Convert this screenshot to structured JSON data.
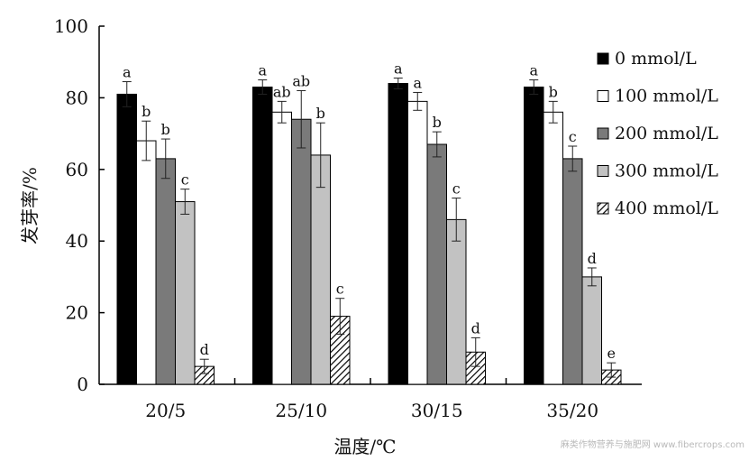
{
  "chart_data": {
    "type": "bar",
    "xlabel": "温度/℃",
    "ylabel": "发芽率/%",
    "ylim": [
      0,
      100
    ],
    "yticks": [
      0,
      20,
      40,
      60,
      80,
      100
    ],
    "categories": [
      "20/5",
      "25/10",
      "30/15",
      "35/20"
    ],
    "legend_position": "right",
    "series": [
      {
        "name": "0 mmol/L",
        "fill": "#000000",
        "pattern": "solid",
        "values": [
          81,
          83,
          84,
          83
        ],
        "errors": [
          3.5,
          2,
          1.5,
          2
        ],
        "letters": [
          "a",
          "a",
          "a",
          "a"
        ]
      },
      {
        "name": "100 mmol/L",
        "fill": "#ffffff",
        "pattern": "solid",
        "values": [
          68,
          76,
          79,
          76
        ],
        "errors": [
          5.5,
          3,
          2.5,
          3
        ],
        "letters": [
          "b",
          "ab",
          "a",
          "b"
        ]
      },
      {
        "name": "200 mmol/L",
        "fill": "#7a7a7a",
        "pattern": "solid",
        "values": [
          63,
          74,
          67,
          63
        ],
        "errors": [
          5.5,
          8,
          3.5,
          3.5
        ],
        "letters": [
          "b",
          "ab",
          "b",
          "c"
        ]
      },
      {
        "name": "300 mmol/L",
        "fill": "#c2c2c2",
        "pattern": "solid",
        "values": [
          51,
          64,
          46,
          30
        ],
        "errors": [
          3.5,
          9,
          6,
          2.5
        ],
        "letters": [
          "c",
          "b",
          "c",
          "d"
        ]
      },
      {
        "name": "400 mmol/L",
        "fill": "#ffffff",
        "pattern": "hatch",
        "values": [
          5,
          19,
          9,
          4
        ],
        "errors": [
          2,
          5,
          4,
          2
        ],
        "letters": [
          "d",
          "c",
          "d",
          "e"
        ]
      }
    ]
  },
  "watermark": "麻类作物营养与施肥网 www.fibercrops.com"
}
